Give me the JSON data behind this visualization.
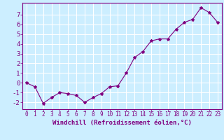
{
  "x": [
    0,
    1,
    2,
    3,
    4,
    5,
    6,
    7,
    8,
    9,
    10,
    11,
    12,
    13,
    14,
    15,
    16,
    17,
    18,
    19,
    20,
    21,
    22,
    23
  ],
  "y": [
    0.0,
    -0.4,
    -2.1,
    -1.5,
    -1.0,
    -1.1,
    -1.3,
    -2.0,
    -1.5,
    -1.1,
    -0.4,
    -0.3,
    1.0,
    2.6,
    3.2,
    4.3,
    4.5,
    4.5,
    5.5,
    6.2,
    6.5,
    7.7,
    7.2,
    6.2
  ],
  "line_color": "#800080",
  "marker": "*",
  "marker_size": 3,
  "background_color": "#cceeff",
  "grid_color": "#aaddcc",
  "xlabel": "Windchill (Refroidissement éolien,°C)",
  "xlim": [
    -0.5,
    23.5
  ],
  "ylim": [
    -2.7,
    8.2
  ],
  "yticks": [
    -2,
    -1,
    0,
    1,
    2,
    3,
    4,
    5,
    6,
    7
  ],
  "xticks": [
    0,
    1,
    2,
    3,
    4,
    5,
    6,
    7,
    8,
    9,
    10,
    11,
    12,
    13,
    14,
    15,
    16,
    17,
    18,
    19,
    20,
    21,
    22,
    23
  ],
  "tick_color": "#800080",
  "label_color": "#800080",
  "spine_color": "#800080",
  "xlabel_fontsize": 6.5,
  "ytick_fontsize": 6.5,
  "xtick_fontsize": 5.5
}
